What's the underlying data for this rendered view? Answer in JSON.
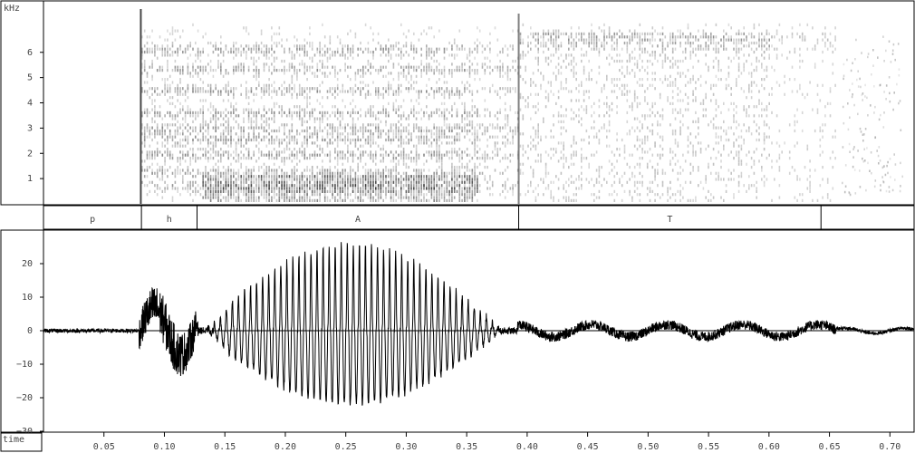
{
  "chart_data": [
    {
      "type": "heatmap",
      "ylabel": "kHz",
      "yticks": [
        "1",
        "2",
        "3",
        "4",
        "5",
        "6"
      ],
      "ylim": [
        0,
        8
      ],
      "xlim": [
        0,
        0.72
      ],
      "formant_bands_khz": [
        0.7,
        1.25,
        1.95,
        2.55,
        3.0,
        3.6,
        4.5,
        5.35,
        6.1
      ],
      "colors": {
        "ink": "#1a1a1a"
      }
    },
    {
      "type": "table",
      "segments": [
        {
          "label": "p",
          "start": 0.0,
          "end": 0.081
        },
        {
          "label": "h",
          "start": 0.081,
          "end": 0.127
        },
        {
          "label": "A",
          "start": 0.127,
          "end": 0.393
        },
        {
          "label": "T",
          "start": 0.393,
          "end": 0.643
        },
        {
          "label": "",
          "start": 0.643,
          "end": 0.72
        }
      ]
    },
    {
      "type": "line",
      "xlabel": "time",
      "yticks": [
        "20",
        "10",
        "0",
        "−10",
        "−20",
        "−30"
      ],
      "ylim": [
        -30,
        30
      ],
      "xlim": [
        0,
        0.72
      ],
      "xticks": [
        "0.05",
        "0.10",
        "0.15",
        "0.20",
        "0.25",
        "0.30",
        "0.35",
        "0.40",
        "0.45",
        "0.50",
        "0.55",
        "0.60",
        "0.65",
        "0.70"
      ],
      "colors": {
        "wave": "#000000",
        "axis": "#000000"
      }
    }
  ]
}
